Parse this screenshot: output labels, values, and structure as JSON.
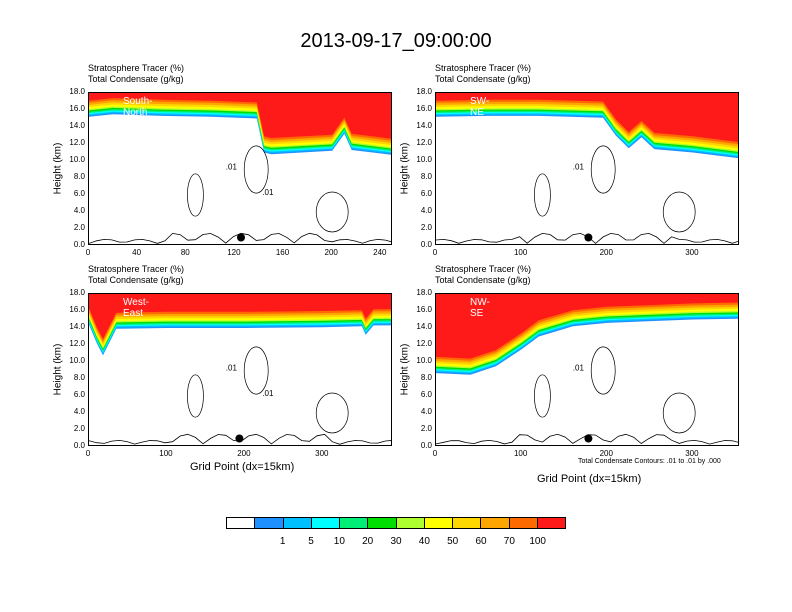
{
  "title": "2013-09-17_09:00:00",
  "variable_labels": {
    "line1": "Stratosphere Tracer   (%)",
    "line2": "Total Condensate   (g/kg)"
  },
  "axis": {
    "ylabel": "Height (km)",
    "xlabel": "Grid Point (dx=15km)",
    "yticks": [
      "0.0",
      "2.0",
      "4.0",
      "6.0",
      "8.0",
      "10.0",
      "12.0",
      "14.0",
      "16.0",
      "18.0"
    ]
  },
  "contour_note": "Total Condensate Contours: .01 to .01 by .000",
  "colorbar": {
    "colors": [
      "#ffffff",
      "#1e90ff",
      "#00bfff",
      "#00ffff",
      "#00ee76",
      "#00dd00",
      "#adff2f",
      "#ffff00",
      "#ffd700",
      "#ffa500",
      "#ff6a00",
      "#ff1a1a"
    ],
    "labels": [
      "1",
      "5",
      "10",
      "20",
      "30",
      "40",
      "50",
      "60",
      "70",
      "100"
    ]
  },
  "chart_data": [
    {
      "type": "heatmap",
      "name": "South-North",
      "xlim": [
        0,
        250
      ],
      "ylim": [
        0,
        18
      ],
      "xticks": [
        "0",
        "40",
        "80",
        "120",
        "160",
        "200",
        "240"
      ],
      "tracer_boundary_km": [
        [
          0,
          15.2
        ],
        [
          20,
          15.5
        ],
        [
          60,
          15.3
        ],
        [
          100,
          15.2
        ],
        [
          138,
          15.0
        ],
        [
          144,
          11.0
        ],
        [
          150,
          10.8
        ],
        [
          200,
          11.2
        ],
        [
          210,
          13.2
        ],
        [
          216,
          11.3
        ],
        [
          250,
          10.7
        ]
      ],
      "contour_labels": [
        ".01",
        ".01"
      ],
      "marker_x": 125
    },
    {
      "type": "heatmap",
      "name": "SW-NE",
      "xlim": [
        0,
        355
      ],
      "ylim": [
        0,
        18
      ],
      "xticks": [
        "0",
        "100",
        "200",
        "300"
      ],
      "tracer_boundary_km": [
        [
          0,
          15.2
        ],
        [
          60,
          15.3
        ],
        [
          120,
          15.3
        ],
        [
          195,
          15.1
        ],
        [
          210,
          13.0
        ],
        [
          225,
          11.5
        ],
        [
          240,
          12.8
        ],
        [
          255,
          11.4
        ],
        [
          300,
          11.0
        ],
        [
          355,
          10.3
        ]
      ],
      "contour_labels": [
        ".01"
      ],
      "marker_x": 178
    },
    {
      "type": "heatmap",
      "name": "West-East",
      "xlim": [
        0,
        390
      ],
      "ylim": [
        0,
        18
      ],
      "xticks": [
        "0",
        "100",
        "200",
        "300"
      ],
      "tracer_boundary_km": [
        [
          0,
          14.4
        ],
        [
          10,
          12.2
        ],
        [
          18,
          10.8
        ],
        [
          35,
          13.9
        ],
        [
          100,
          14.0
        ],
        [
          200,
          14.0
        ],
        [
          300,
          14.1
        ],
        [
          350,
          14.2
        ],
        [
          355,
          13.2
        ],
        [
          365,
          14.3
        ],
        [
          390,
          14.3
        ]
      ],
      "contour_labels": [
        ".01",
        ".01"
      ],
      "marker_x": 193
    },
    {
      "type": "heatmap",
      "name": "NW-SE",
      "xlim": [
        0,
        355
      ],
      "ylim": [
        0,
        18
      ],
      "xticks": [
        "0",
        "100",
        "200",
        "300"
      ],
      "tracer_boundary_km": [
        [
          0,
          8.7
        ],
        [
          40,
          8.5
        ],
        [
          70,
          9.5
        ],
        [
          100,
          11.5
        ],
        [
          120,
          13.0
        ],
        [
          160,
          14.2
        ],
        [
          200,
          14.6
        ],
        [
          300,
          15.0
        ],
        [
          355,
          15.1
        ]
      ],
      "contour_labels": [
        ".01"
      ],
      "marker_x": 178
    }
  ]
}
